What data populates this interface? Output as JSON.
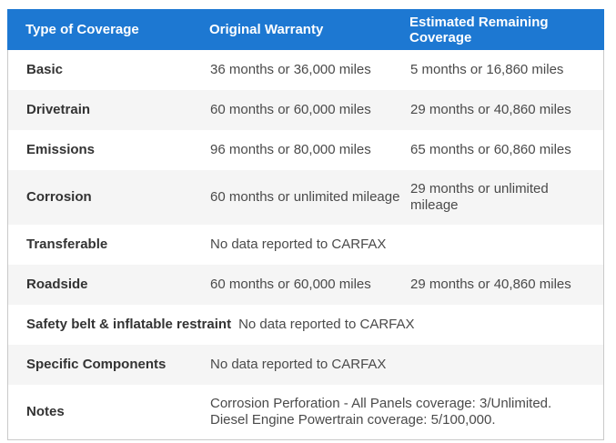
{
  "colors": {
    "header_bg": "#1d78d2",
    "header_text": "#ffffff",
    "stripe_bg": "#f5f5f5",
    "border": "#c9c9c9",
    "label_text": "#333333",
    "value_text": "#4a4a4a"
  },
  "table": {
    "columns": [
      {
        "label": "Type of Coverage"
      },
      {
        "label": "Original Warranty"
      },
      {
        "label": "Estimated Remaining Coverage"
      }
    ],
    "rows": [
      {
        "type": "Basic",
        "original": "36 months or 36,000 miles",
        "remaining": "5 months or 16,860 miles"
      },
      {
        "type": "Drivetrain",
        "original": "60 months or 60,000 miles",
        "remaining": "29 months or 40,860 miles"
      },
      {
        "type": "Emissions",
        "original": "96 months or 80,000 miles",
        "remaining": "65 months or 60,860 miles"
      },
      {
        "type": "Corrosion",
        "original": "60 months or unlimited mileage",
        "remaining": "29 months or unlimited mileage"
      },
      {
        "type": "Transferable",
        "original": "No data reported to CARFAX",
        "remaining": ""
      },
      {
        "type": "Roadside",
        "original": "60 months or 60,000 miles",
        "remaining": "29 months or 40,860 miles"
      },
      {
        "type": "Safety belt & inflatable restraint",
        "original": "No data reported to CARFAX",
        "remaining": ""
      },
      {
        "type": "Specific Components",
        "original": "No data reported to CARFAX",
        "remaining": ""
      },
      {
        "type": "Notes",
        "original": "Corrosion Perforation - All Panels coverage: 3/Unlimited. Diesel Engine Powertrain coverage: 5/100,000.",
        "remaining": ""
      }
    ]
  }
}
